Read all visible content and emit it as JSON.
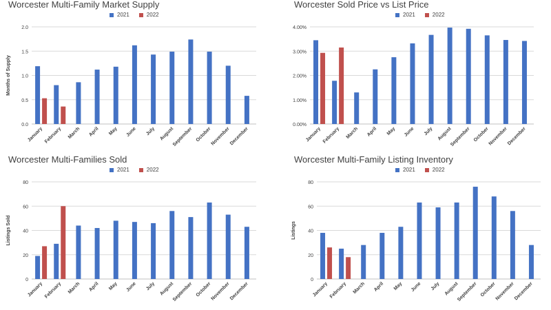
{
  "colors": {
    "s2021": "#4472c4",
    "s2022": "#c0504d",
    "grid": "#d9d9d9",
    "text": "#404040"
  },
  "chart_data": [
    {
      "type": "bar",
      "title": "Worcester Multi-Family Market Supply",
      "xlabel": "",
      "ylabel": "Months of Supply",
      "ylim": [
        0,
        2.0
      ],
      "ticks": [
        0,
        0.5,
        1.0,
        1.5,
        2.0
      ],
      "tick_labels": [
        "0.0",
        "0.5",
        "1.0",
        "1.5",
        "2.0"
      ],
      "grid": true,
      "legend": "top",
      "categories": [
        "January",
        "February",
        "March",
        "April",
        "May",
        "June",
        "July",
        "August",
        "September",
        "October",
        "November",
        "December"
      ],
      "series": [
        {
          "name": "2021",
          "values": [
            1.19,
            0.8,
            0.86,
            1.12,
            1.18,
            1.62,
            1.43,
            1.49,
            1.74,
            1.49,
            1.2,
            0.58
          ]
        },
        {
          "name": "2022",
          "values": [
            0.53,
            0.36,
            null,
            null,
            null,
            null,
            null,
            null,
            null,
            null,
            null,
            null
          ]
        }
      ]
    },
    {
      "type": "bar",
      "title": "Worcester Sold Price vs List Price",
      "xlabel": "",
      "ylabel": "",
      "ylim": [
        0,
        4.0
      ],
      "ticks": [
        0,
        1,
        2,
        3,
        4
      ],
      "tick_labels": [
        "0.00%",
        "1.00%",
        "2.00%",
        "3.00%",
        "4.00%"
      ],
      "grid": true,
      "legend": "top",
      "categories": [
        "January",
        "February",
        "March",
        "April",
        "May",
        "June",
        "July",
        "August",
        "September",
        "October",
        "November",
        "December"
      ],
      "series": [
        {
          "name": "2021",
          "values": [
            3.45,
            1.78,
            1.3,
            2.25,
            2.75,
            3.32,
            3.67,
            3.97,
            3.92,
            3.65,
            3.46,
            3.42
          ]
        },
        {
          "name": "2022",
          "values": [
            2.93,
            3.15,
            null,
            null,
            null,
            null,
            null,
            null,
            null,
            null,
            null,
            null
          ]
        }
      ]
    },
    {
      "type": "bar",
      "title": "Worcester Multi-Families Sold",
      "xlabel": "",
      "ylabel": "Listings Sold",
      "ylim": [
        0,
        80
      ],
      "ticks": [
        0,
        20,
        40,
        60,
        80
      ],
      "tick_labels": [
        "0",
        "20",
        "40",
        "60",
        "80"
      ],
      "grid": true,
      "legend": "top",
      "categories": [
        "January",
        "February",
        "March",
        "April",
        "May",
        "June",
        "July",
        "August",
        "September",
        "October",
        "November",
        "December"
      ],
      "series": [
        {
          "name": "2021",
          "values": [
            19,
            29,
            44,
            42,
            48,
            47,
            46,
            56,
            51,
            63,
            53,
            43
          ]
        },
        {
          "name": "2022",
          "values": [
            27,
            60,
            null,
            null,
            null,
            null,
            null,
            null,
            null,
            null,
            null,
            null
          ]
        }
      ]
    },
    {
      "type": "bar",
      "title": "Worcester Multi-Family Listing Inventory",
      "xlabel": "",
      "ylabel": "Listings",
      "ylim": [
        0,
        80
      ],
      "ticks": [
        0,
        20,
        40,
        60,
        80
      ],
      "tick_labels": [
        "0",
        "20",
        "40",
        "60",
        "80"
      ],
      "grid": true,
      "legend": "top",
      "categories": [
        "January",
        "February",
        "March",
        "April",
        "May",
        "June",
        "July",
        "August",
        "September",
        "October",
        "November",
        "December"
      ],
      "series": [
        {
          "name": "2021",
          "values": [
            38,
            25,
            28,
            38,
            43,
            63,
            59,
            63,
            76,
            68,
            56,
            28
          ]
        },
        {
          "name": "2022",
          "values": [
            26,
            18,
            null,
            null,
            null,
            null,
            null,
            null,
            null,
            null,
            null,
            null
          ]
        }
      ]
    }
  ]
}
